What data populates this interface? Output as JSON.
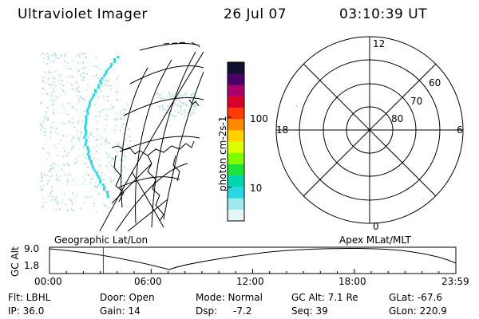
{
  "header": {
    "instrument": "Ultraviolet Imager",
    "date": "26 Jul 07",
    "time": "03:10:39 UT"
  },
  "colorbar": {
    "unit_label": "photon cm-2s-1",
    "tick_100": "100",
    "tick_10": "10",
    "colors": [
      "#101030",
      "#4b0066",
      "#a8006b",
      "#d9002a",
      "#ff3b00",
      "#ff8a00",
      "#ffd200",
      "#dcff00",
      "#7fff00",
      "#1fe33b",
      "#00d6b0",
      "#28d6e6",
      "#9fe9ee",
      "#e6f4f4"
    ]
  },
  "polar": {
    "mlt_12": "12",
    "mlt_18": "18",
    "mlt_6": "6",
    "mlt_0": "0",
    "lat_60": "60",
    "lat_70": "70",
    "lat_80": "80"
  },
  "labels": {
    "geo": "Geographic Lat/Lon",
    "apex": "Apex MLat/MLT"
  },
  "altitude_plot": {
    "axis_label": "GC Alt",
    "y_max": "9.0",
    "y_min": "1.8",
    "times": [
      "00:00",
      "06:00",
      "12:00",
      "18:00",
      "23:59"
    ],
    "current_hour": 3.18,
    "marker_color": "#e00000"
  },
  "info": {
    "flt": "Flt: LBHL",
    "door": "Door: Open",
    "mode": "Mode: Normal",
    "gc_alt": "GC Alt: 7.1 Re",
    "glat": "GLat: -67.6",
    "ip": "IP: 36.0",
    "gain": "Gain: 14",
    "dsp_label": "Dsp:",
    "dsp_value": "-7.2",
    "seq": "Seq: 39",
    "glon": "GLon: 220.9"
  }
}
